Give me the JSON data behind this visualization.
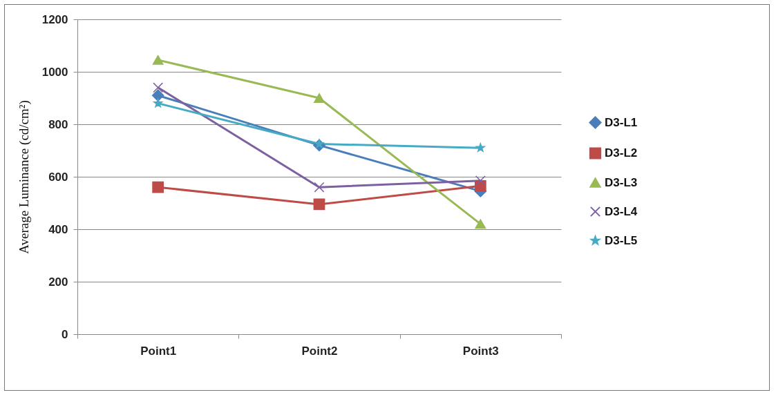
{
  "chart_data": {
    "type": "line",
    "ylabel": "Average Luminance (cd/cm²)",
    "categories": [
      "Point1",
      "Point2",
      "Point3"
    ],
    "series": [
      {
        "name": "D3-L1",
        "color": "#4a7ebb",
        "marker": "diamond",
        "values": [
          910,
          720,
          545
        ]
      },
      {
        "name": "D3-L2",
        "color": "#be4b48",
        "marker": "square",
        "values": [
          560,
          495,
          565
        ]
      },
      {
        "name": "D3-L3",
        "color": "#98b954",
        "marker": "triangle",
        "values": [
          1045,
          900,
          420
        ]
      },
      {
        "name": "D3-L4",
        "color": "#7d60a0",
        "marker": "cross",
        "values": [
          940,
          560,
          585
        ]
      },
      {
        "name": "D3-L5",
        "color": "#46aac5",
        "marker": "star",
        "values": [
          880,
          725,
          710
        ]
      }
    ],
    "ylim": [
      0,
      1200
    ],
    "yticks": [
      0,
      200,
      400,
      600,
      800,
      1000,
      1200
    ],
    "grid": "y",
    "legend": "right"
  }
}
